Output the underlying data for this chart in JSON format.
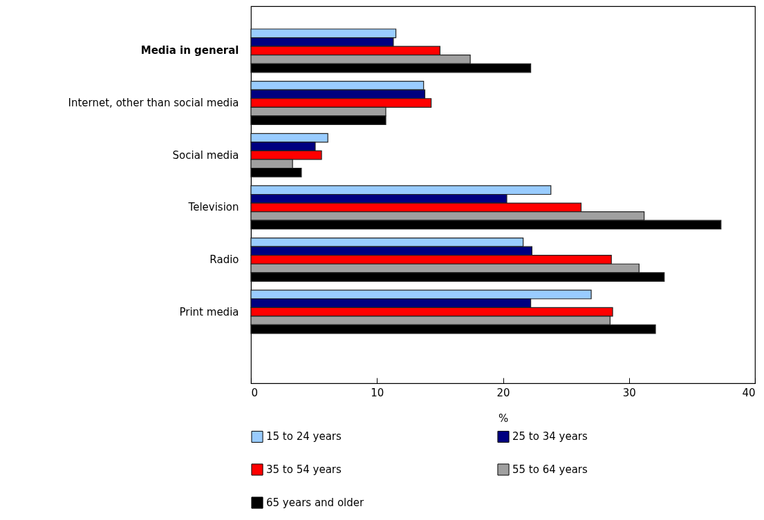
{
  "chart_data": {
    "type": "bar",
    "orientation": "horizontal",
    "xlabel": "%",
    "categories": [
      "Media in general",
      "Internet, other than social media",
      "Social media",
      "Television",
      "Radio",
      "Print media"
    ],
    "series": [
      {
        "name": "15 to 24 years",
        "color": "#99ccff",
        "values": [
          11.5,
          13.7,
          6.1,
          23.8,
          21.6,
          27.0
        ]
      },
      {
        "name": "25 to 34 years",
        "color": "#000080",
        "values": [
          11.3,
          13.8,
          5.1,
          20.3,
          22.3,
          22.2
        ]
      },
      {
        "name": "35 to 54 years",
        "color": "#ff0000",
        "values": [
          15.0,
          14.3,
          5.6,
          26.2,
          28.6,
          28.7
        ]
      },
      {
        "name": "55 to 64 years",
        "color": "#a0a0a0",
        "values": [
          17.4,
          10.7,
          3.3,
          31.2,
          30.8,
          28.5
        ]
      },
      {
        "name": "65 years and older",
        "color": "#000000",
        "values": [
          22.2,
          10.7,
          4.0,
          37.3,
          32.8,
          32.1
        ]
      }
    ],
    "xlim": [
      0,
      40
    ],
    "xticks": [
      0,
      10,
      20,
      30,
      40
    ],
    "grid": false,
    "legend": "bottom"
  }
}
